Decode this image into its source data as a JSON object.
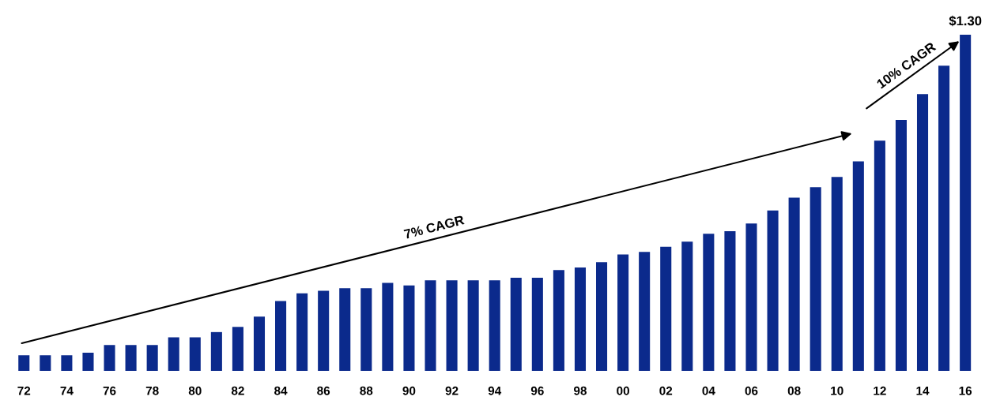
{
  "chart_data": {
    "type": "bar",
    "color": "#0b2a8c",
    "categories": [
      "72",
      null,
      "74",
      null,
      "76",
      null,
      "78",
      null,
      "80",
      null,
      "82",
      null,
      "84",
      null,
      "86",
      null,
      "88",
      null,
      "90",
      null,
      "92",
      null,
      "94",
      null,
      "96",
      null,
      "98",
      null,
      "00",
      null,
      "02",
      null,
      "04",
      null,
      "06",
      null,
      "08",
      null,
      "10",
      null,
      "12",
      null,
      "14",
      null,
      "16"
    ],
    "values": [
      0.06,
      0.06,
      0.06,
      0.07,
      0.1,
      0.1,
      0.1,
      0.13,
      0.13,
      0.15,
      0.17,
      0.21,
      0.27,
      0.3,
      0.31,
      0.32,
      0.32,
      0.34,
      0.33,
      0.35,
      0.35,
      0.35,
      0.35,
      0.36,
      0.36,
      0.39,
      0.4,
      0.42,
      0.45,
      0.46,
      0.48,
      0.5,
      0.53,
      0.54,
      0.57,
      0.62,
      0.67,
      0.71,
      0.75,
      0.81,
      0.89,
      0.97,
      1.07,
      1.18,
      1.3
    ],
    "value_labels": [
      null,
      null,
      null,
      null,
      null,
      null,
      null,
      null,
      null,
      null,
      null,
      null,
      null,
      null,
      null,
      null,
      null,
      null,
      null,
      null,
      null,
      null,
      null,
      null,
      null,
      null,
      null,
      null,
      null,
      null,
      null,
      null,
      null,
      null,
      null,
      null,
      null,
      null,
      null,
      null,
      null,
      null,
      null,
      null,
      "$1.30"
    ],
    "annotations": [
      "7% CAGR",
      "10% CAGR"
    ],
    "grid": false,
    "legend": false
  }
}
